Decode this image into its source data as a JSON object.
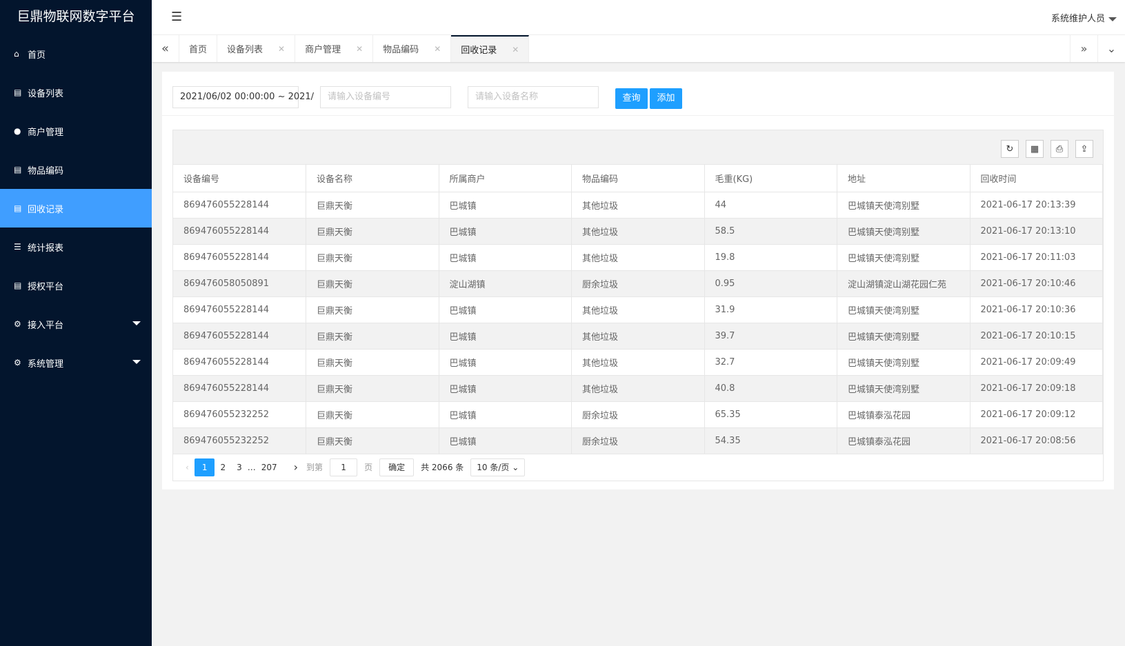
{
  "app_title": "巨鼎物联网数字平台",
  "sidebar": {
    "items": [
      {
        "label": "首页",
        "icon": "home-icon"
      },
      {
        "label": "设备列表",
        "icon": "list-icon"
      },
      {
        "label": "商户管理",
        "icon": "user-icon"
      },
      {
        "label": "物品编码",
        "icon": "list-icon"
      },
      {
        "label": "回收记录",
        "icon": "list-icon",
        "active": true
      },
      {
        "label": "统计报表",
        "icon": "menu-icon"
      },
      {
        "label": "授权平台",
        "icon": "list-icon"
      },
      {
        "label": "接入平台",
        "icon": "gear-icon",
        "expandable": true
      },
      {
        "label": "系统管理",
        "icon": "gear-icon",
        "expandable": true
      }
    ]
  },
  "header": {
    "user": "系统维护人员"
  },
  "tabs": [
    {
      "label": "首页"
    },
    {
      "label": "设备列表",
      "closable": true
    },
    {
      "label": "商户管理",
      "closable": true
    },
    {
      "label": "物品编码",
      "closable": true
    },
    {
      "label": "回收记录",
      "closable": true,
      "active": true
    }
  ],
  "filters": {
    "date_range": "2021/06/02 00:00:00 ~ 2021/",
    "device_no_placeholder": "请输入设备编号",
    "device_name_placeholder": "请输入设备名称",
    "query": "查询",
    "add": "添加"
  },
  "table": {
    "columns": [
      "设备编号",
      "设备名称",
      "所属商户",
      "物品编码",
      "毛重(KG)",
      "地址",
      "回收时间"
    ],
    "rows": [
      [
        "869476055228144",
        "巨鼎天衡",
        "巴城镇",
        "其他垃圾",
        "44",
        "巴城镇天使湾别墅",
        "2021-06-17 20:13:39"
      ],
      [
        "869476055228144",
        "巨鼎天衡",
        "巴城镇",
        "其他垃圾",
        "58.5",
        "巴城镇天使湾别墅",
        "2021-06-17 20:13:10"
      ],
      [
        "869476055228144",
        "巨鼎天衡",
        "巴城镇",
        "其他垃圾",
        "19.8",
        "巴城镇天使湾别墅",
        "2021-06-17 20:11:03"
      ],
      [
        "869476058050891",
        "巨鼎天衡",
        "淀山湖镇",
        "厨余垃圾",
        "0.95",
        "淀山湖镇淀山湖花园仁苑",
        "2021-06-17 20:10:46"
      ],
      [
        "869476055228144",
        "巨鼎天衡",
        "巴城镇",
        "其他垃圾",
        "31.9",
        "巴城镇天使湾别墅",
        "2021-06-17 20:10:36"
      ],
      [
        "869476055228144",
        "巨鼎天衡",
        "巴城镇",
        "其他垃圾",
        "39.7",
        "巴城镇天使湾别墅",
        "2021-06-17 20:10:15"
      ],
      [
        "869476055228144",
        "巨鼎天衡",
        "巴城镇",
        "其他垃圾",
        "32.7",
        "巴城镇天使湾别墅",
        "2021-06-17 20:09:49"
      ],
      [
        "869476055228144",
        "巨鼎天衡",
        "巴城镇",
        "其他垃圾",
        "40.8",
        "巴城镇天使湾别墅",
        "2021-06-17 20:09:18"
      ],
      [
        "869476055232252",
        "巨鼎天衡",
        "巴城镇",
        "厨余垃圾",
        "65.35",
        "巴城镇泰泓花园",
        "2021-06-17 20:09:12"
      ],
      [
        "869476055232252",
        "巨鼎天衡",
        "巴城镇",
        "厨余垃圾",
        "54.35",
        "巴城镇泰泓花园",
        "2021-06-17 20:08:56"
      ]
    ]
  },
  "pagination": {
    "pages": [
      "1",
      "2",
      "3"
    ],
    "ellipsis": "…",
    "last": "207",
    "goto_label": "到第",
    "goto_value": "1",
    "page_unit": "页",
    "confirm": "确定",
    "total": "共 2066 条",
    "page_size": "10 条/页"
  },
  "colors": {
    "sidebar_bg": "#03152d",
    "active": "#409eff",
    "button": "#1e9fff"
  }
}
